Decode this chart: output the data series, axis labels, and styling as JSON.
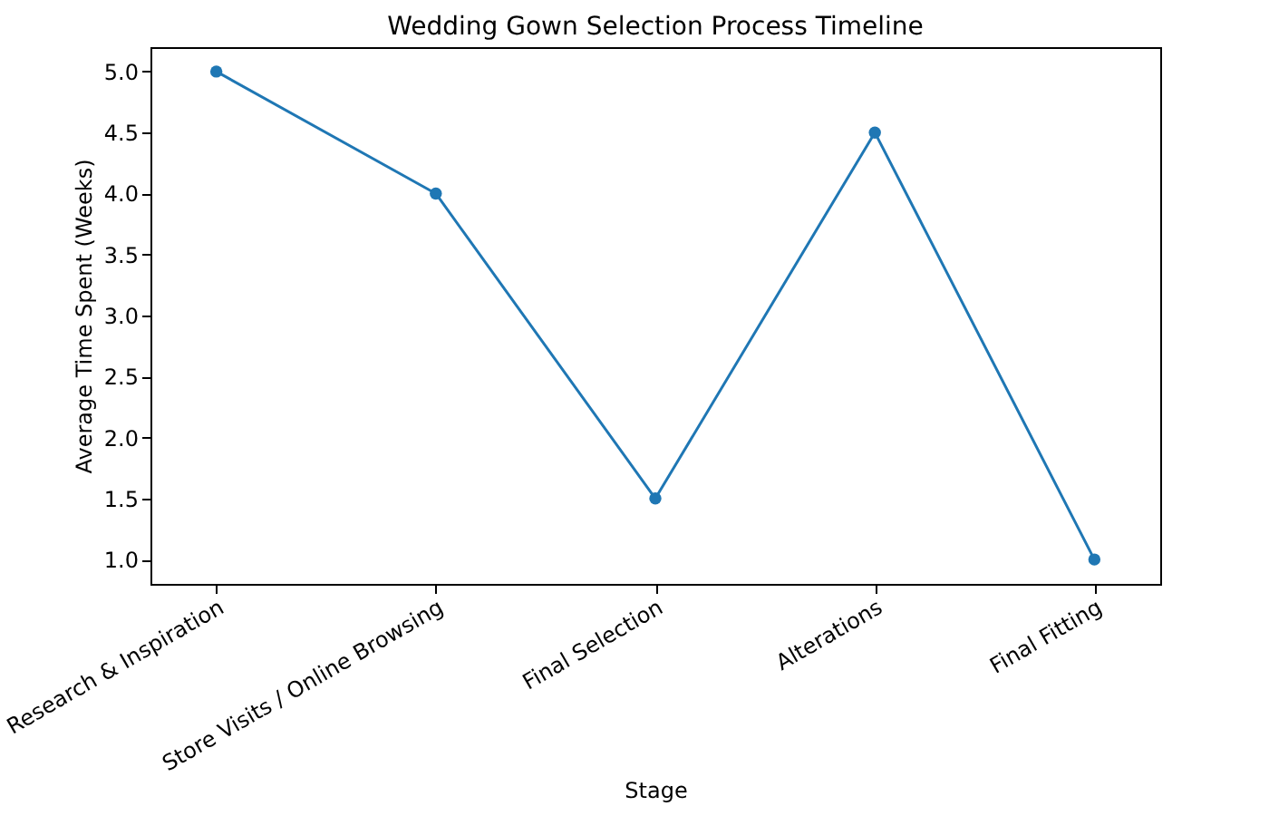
{
  "chart_data": {
    "type": "line",
    "title": "Wedding Gown Selection Process Timeline",
    "xlabel": "Stage",
    "ylabel": "Average Time Spent (Weeks)",
    "categories": [
      "Research & Inspiration",
      "Store Visits / Online Browsing",
      "Final Selection",
      "Alterations",
      "Final Fitting"
    ],
    "series": [
      {
        "color": "#1f77b4",
        "values": [
          5.0,
          4.0,
          1.5,
          4.5,
          1.0
        ]
      }
    ],
    "ylim": [
      0.8,
      5.2
    ],
    "yticks": [
      {
        "value": 1,
        "label": "1.0"
      },
      {
        "value": 1.5,
        "label": "1.5"
      },
      {
        "value": 2,
        "label": "2.0"
      },
      {
        "value": 2.5,
        "label": "2.5"
      },
      {
        "value": 3,
        "label": "3.0"
      },
      {
        "value": 3.5,
        "label": "3.5"
      },
      {
        "value": 4,
        "label": "4.0"
      },
      {
        "value": 4.5,
        "label": "4.5"
      },
      {
        "value": 5,
        "label": "5.0"
      }
    ],
    "grid": false,
    "marker": "circle",
    "line_style": "solid"
  }
}
